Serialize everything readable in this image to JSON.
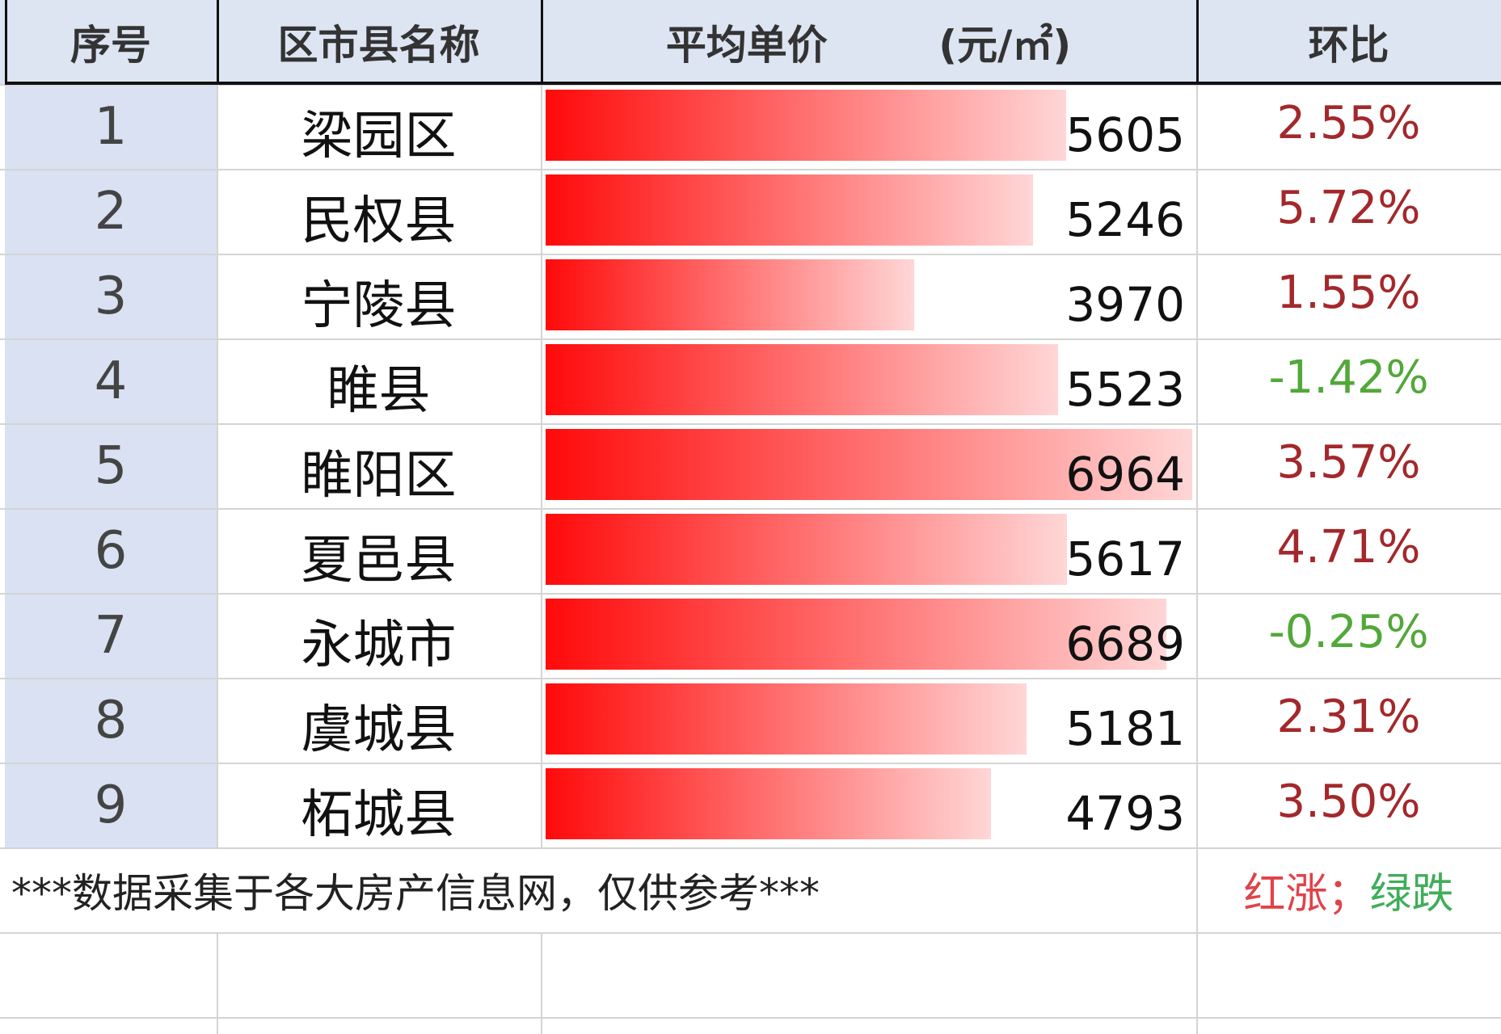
{
  "header": [
    "序号",
    "区市县名称",
    "平均单价 (元/㎡)",
    "环比"
  ],
  "rows": [
    {
      "index": 1,
      "name": "梁园区",
      "price": 5605,
      "change": "2.55%"
    },
    {
      "index": 2,
      "name": "民权县",
      "price": 5246,
      "change": "5.72%"
    },
    {
      "index": 3,
      "name": "宁陵县",
      "price": 3970,
      "change": "1.55%"
    },
    {
      "index": 4,
      "name": "睢县",
      "price": 5523,
      "change": "-1.42%"
    },
    {
      "index": 5,
      "name": "睢阳区",
      "price": 6964,
      "change": "3.57%"
    },
    {
      "index": 6,
      "name": "夏邑县",
      "price": 5617,
      "change": "4.71%"
    },
    {
      "index": 7,
      "name": "永城市",
      "price": 6689,
      "change": "-0.25%"
    },
    {
      "index": 8,
      "name": "虞城县",
      "price": 5181,
      "change": "2.31%"
    },
    {
      "index": 9,
      "name": "柘城县",
      "price": 4793,
      "change": "3.50%"
    }
  ],
  "footer": {
    "note": "***数据采集于各大房产信息网，仅供参考***",
    "legend": [
      "红涨；",
      "绿跌"
    ]
  }
}
